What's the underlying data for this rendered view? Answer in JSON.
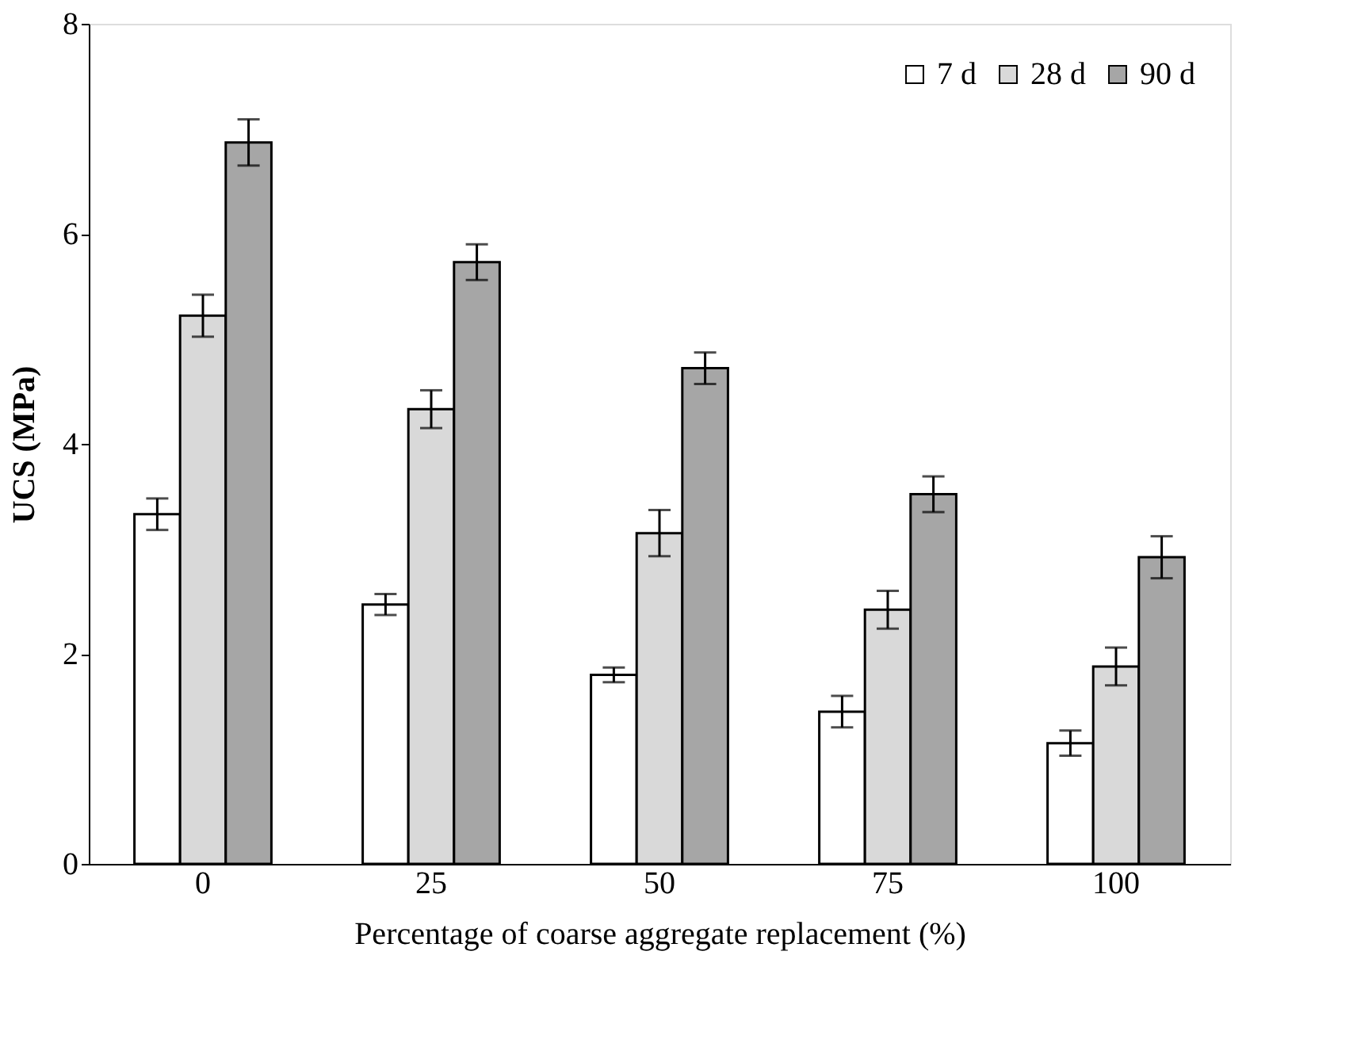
{
  "chart_data": {
    "type": "bar",
    "xlabel": "Percentage of coarse aggregate replacement (%)",
    "ylabel": "UCS (MPa)",
    "categories": [
      "0",
      "25",
      "50",
      "75",
      "100"
    ],
    "series": [
      {
        "name": "7 d",
        "color": "#ffffff",
        "values": [
          3.33,
          2.47,
          1.8,
          1.45,
          1.15
        ],
        "errors": [
          0.15,
          0.1,
          0.07,
          0.15,
          0.12
        ]
      },
      {
        "name": "28 d",
        "color": "#d9d9d9",
        "values": [
          5.22,
          4.33,
          3.15,
          2.42,
          1.88
        ],
        "errors": [
          0.2,
          0.18,
          0.22,
          0.18,
          0.18
        ]
      },
      {
        "name": "90 d",
        "color": "#a6a6a6",
        "values": [
          6.87,
          5.73,
          4.72,
          3.52,
          2.92
        ],
        "errors": [
          0.22,
          0.17,
          0.15,
          0.17,
          0.2
        ]
      }
    ],
    "ylim": [
      0,
      8
    ],
    "yticks": [
      0,
      2,
      4,
      6,
      8
    ],
    "grid": false,
    "legend": "top right"
  }
}
